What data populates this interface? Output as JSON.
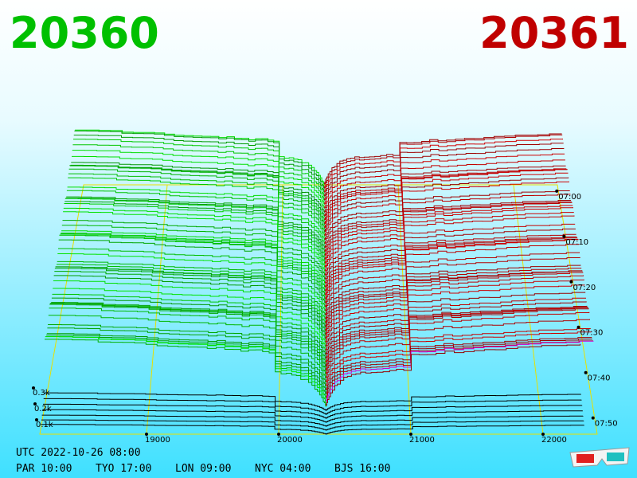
{
  "bid": "20360",
  "ask": "20361",
  "price_ticks": [
    19000,
    20000,
    21000,
    22000
  ],
  "time_ticks": [
    "07:00",
    "07:10",
    "07:20",
    "07:30",
    "07:40",
    "07:50"
  ],
  "depth_ticks": [
    "0.1k",
    "0.2k",
    "0.3k"
  ],
  "utc": "UTC 2022-10-26 08:00",
  "clocks": [
    "PAR 10:00",
    "TYO 17:00",
    "LON 09:00",
    "NYC 04:00",
    "BJS 16:00"
  ]
}
